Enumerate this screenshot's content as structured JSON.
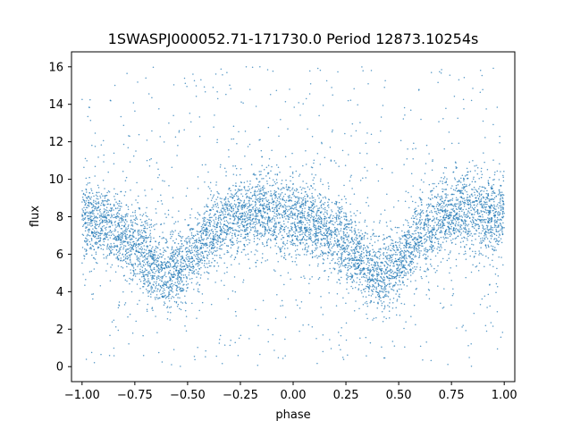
{
  "chart_data": {
    "type": "scatter",
    "title": "1SWASPJ000052.71-171730.0 Period 12873.10254s",
    "xlabel": "phase",
    "ylabel": "flux",
    "xlim": [
      -1.05,
      1.05
    ],
    "ylim": [
      -0.8,
      16.8
    ],
    "xticks": [
      -1.0,
      -0.75,
      -0.5,
      -0.25,
      0.0,
      0.25,
      0.5,
      0.75,
      1.0
    ],
    "xtick_labels": [
      "−1.00",
      "−0.75",
      "−0.50",
      "−0.25",
      "0.00",
      "0.25",
      "0.50",
      "0.75",
      "1.00"
    ],
    "yticks": [
      0,
      2,
      4,
      6,
      8,
      10,
      12,
      14,
      16
    ],
    "ytick_labels": [
      "0",
      "2",
      "4",
      "6",
      "8",
      "10",
      "12",
      "14",
      "16"
    ],
    "grid": false,
    "marker_color": "#1f77b4",
    "series": [
      {
        "phase_range": [
          -1.0,
          1.0
        ],
        "flux_range": [
          0.0,
          16.0
        ],
        "trend": {
          "phase": [
            -1.0,
            -0.9,
            -0.8,
            -0.7,
            -0.6,
            -0.5,
            -0.4,
            -0.3,
            -0.2,
            -0.1,
            0.0,
            0.1,
            0.2,
            0.3,
            0.4,
            0.5,
            0.6,
            0.7,
            0.8,
            0.9,
            1.0
          ],
          "flux": [
            7.8,
            7.6,
            7.0,
            6.0,
            4.8,
            5.5,
            7.0,
            7.9,
            8.3,
            8.3,
            8.0,
            7.6,
            7.0,
            6.0,
            4.8,
            5.5,
            7.0,
            7.9,
            8.3,
            8.1,
            7.8
          ]
        }
      }
    ]
  }
}
